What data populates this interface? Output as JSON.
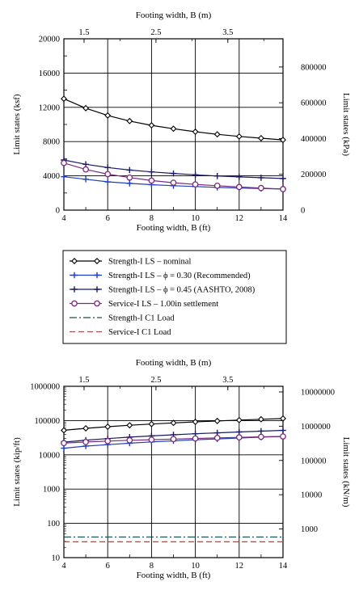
{
  "chart_data": [
    {
      "type": "line",
      "x": [
        4,
        5,
        6,
        7,
        8,
        9,
        10,
        11,
        12,
        13,
        14
      ],
      "xlabel": "Footing width, B (ft)",
      "xlim": [
        4,
        14
      ],
      "xticks": [
        "4",
        "6",
        "8",
        "10",
        "12",
        "14"
      ],
      "x2label": "Footing width, B (m)",
      "x2ticks": [
        "1.5",
        "2.5",
        "3.5"
      ],
      "ylabel": "Limit states (ksf)",
      "ylim": [
        0,
        20000
      ],
      "yticks": [
        "0",
        "4000",
        "8000",
        "12000",
        "16000",
        "20000"
      ],
      "y2label": "Limit states (kPa)",
      "y2ticks": [
        "0",
        "200000",
        "400000",
        "600000",
        "800000"
      ],
      "grid": true,
      "series": [
        {
          "name": "Strength-I LS – nominal",
          "color": "#000000",
          "marker": "diamond",
          "values": [
            13000,
            11900,
            11050,
            10400,
            9900,
            9500,
            9150,
            8850,
            8600,
            8400,
            8200
          ]
        },
        {
          "name": "Strength-I LS – ϕ = 0.30 (Recommended)",
          "color": "#1f3fbf",
          "marker": "plus",
          "values": [
            3900,
            3600,
            3300,
            3120,
            2970,
            2850,
            2750,
            2650,
            2580,
            2520,
            2460
          ]
        },
        {
          "name": "Strength-I LS – ϕ = 0.45 (AASHTO, 2008)",
          "color": "#1a1a66",
          "marker": "plus",
          "values": [
            5850,
            5350,
            4970,
            4680,
            4460,
            4280,
            4120,
            3980,
            3880,
            3780,
            3690
          ]
        },
        {
          "name": "Service-I LS – 1.00in settlement",
          "color": "#7a2a7a",
          "marker": "circle",
          "values": [
            5500,
            4750,
            4200,
            3800,
            3450,
            3200,
            3000,
            2850,
            2700,
            2580,
            2450
          ]
        }
      ]
    },
    {
      "type": "line",
      "x": [
        4,
        5,
        6,
        7,
        8,
        9,
        10,
        11,
        12,
        13,
        14
      ],
      "xlabel": "Footing width, B (ft)",
      "xlim": [
        4,
        14
      ],
      "xticks": [
        "4",
        "6",
        "8",
        "10",
        "12",
        "14"
      ],
      "x2label": "Footing width, B (m)",
      "x2ticks": [
        "1.5",
        "2.5",
        "3.5"
      ],
      "ylabel": "Limit states (kip/ft)",
      "yscale": "log",
      "ylim": [
        10,
        1000000
      ],
      "yticks": [
        "10",
        "100",
        "1000",
        "10000",
        "100000",
        "1000000"
      ],
      "y2label": "Limit states (kN/m)",
      "y2ticks": [
        "1000",
        "10000",
        "100000",
        "1000000",
        "10000000"
      ],
      "grid": true,
      "series": [
        {
          "name": "Strength-I LS – nominal",
          "color": "#000000",
          "marker": "diamond",
          "values": [
            52000,
            59500,
            66300,
            72800,
            79200,
            85500,
            91500,
            97400,
            103200,
            109200,
            114800
          ]
        },
        {
          "name": "Strength-I LS – ϕ = 0.30 (Recommended)",
          "color": "#1f3fbf",
          "marker": "plus",
          "values": [
            15600,
            18000,
            19800,
            21800,
            23800,
            25600,
            27500,
            29200,
            31000,
            32800,
            34400
          ]
        },
        {
          "name": "Strength-I LS – ϕ = 0.45 (AASHTO, 2008)",
          "color": "#1a1a66",
          "marker": "plus",
          "values": [
            23400,
            26800,
            29800,
            32800,
            35700,
            38500,
            41300,
            43800,
            46500,
            49200,
            51700
          ]
        },
        {
          "name": "Service-I LS – 1.00in settlement",
          "color": "#7a2a7a",
          "marker": "circle",
          "values": [
            22000,
            23700,
            25200,
            26600,
            27600,
            28800,
            30000,
            31300,
            32400,
            33500,
            34300
          ]
        },
        {
          "name": "Strength-I C1 Load",
          "color": "#1f4f4f",
          "dash": "dashdot",
          "constant": 40
        },
        {
          "name": "Service-I C1 Load",
          "color": "#a05050",
          "dash": "dash",
          "constant": 29
        }
      ]
    }
  ],
  "legend": {
    "placement": "between",
    "items": [
      {
        "label": "Strength-I LS – nominal",
        "color": "#000000",
        "marker": "diamond",
        "dash": "solid"
      },
      {
        "label": "Strength-I LS – ϕ = 0.30 (Recommended)",
        "color": "#1f3fbf",
        "marker": "plus",
        "dash": "solid"
      },
      {
        "label": "Strength-I LS – ϕ = 0.45 (AASHTO, 2008)",
        "color": "#1a1a66",
        "marker": "plus",
        "dash": "solid"
      },
      {
        "label": "Service-I LS – 1.00in settlement",
        "color": "#7a2a7a",
        "marker": "circle",
        "dash": "solid"
      },
      {
        "label": "Strength-I C1 Load",
        "color": "#1f4f4f",
        "marker": "none",
        "dash": "dashdot"
      },
      {
        "label": "Service-I C1 Load",
        "color": "#a05050",
        "marker": "none",
        "dash": "dash"
      }
    ]
  }
}
